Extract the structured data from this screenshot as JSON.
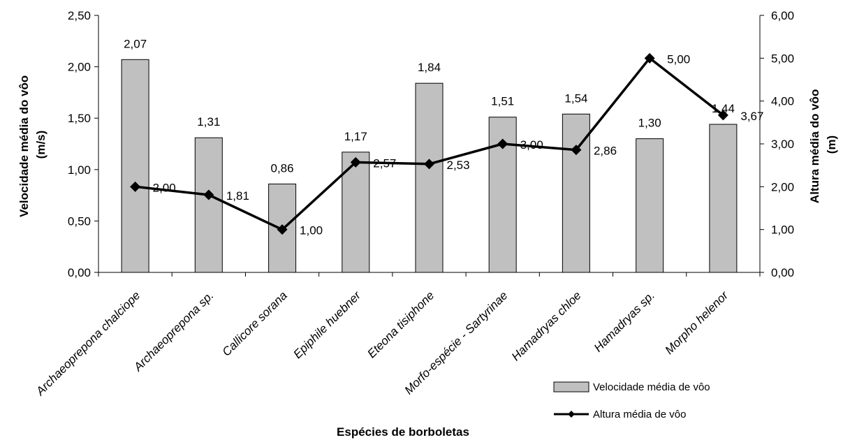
{
  "chart_data": {
    "type": "bar",
    "title": "",
    "xlabel": "Espécies de borboletas",
    "ylabel": "Velocidade média do vôo (m/s)",
    "ylabel_lines": [
      "Velocidade média do vôo",
      "(m/s)"
    ],
    "y2label": "Altura média do vôo (m)",
    "y2label_lines": [
      "Altura média do vôo",
      "(m)"
    ],
    "ylim": [
      0,
      2.5
    ],
    "y2lim": [
      0,
      6
    ],
    "yticks": [
      "0,00",
      "0,50",
      "1,00",
      "1,50",
      "2,00",
      "2,50"
    ],
    "y2ticks": [
      "0,00",
      "1,00",
      "2,00",
      "3,00",
      "4,00",
      "5,00",
      "6,00"
    ],
    "grid": false,
    "legend_position": "bottom-right",
    "categories": [
      "Archaeoprepona chalciope",
      "Archaeoprepona sp.",
      "Callicore sorana",
      "Epiphile huebner",
      "Eteona tisiphone",
      "Morfo-espécie - Sartyrinae",
      "Hamadryas chloe",
      "Hamadryas sp.",
      "Morpho helenor"
    ],
    "series": [
      {
        "name": "Velocidade média de vôo",
        "type": "bar",
        "axis": "left",
        "color": "#c0c0c0",
        "values": [
          2.07,
          1.31,
          0.86,
          1.17,
          1.84,
          1.51,
          1.54,
          1.3,
          1.44
        ],
        "labels": [
          "2,07",
          "1,31",
          "0,86",
          "1,17",
          "1,84",
          "1,51",
          "1,54",
          "1,30",
          "1,44"
        ]
      },
      {
        "name": "Altura média de vôo",
        "type": "line",
        "axis": "right",
        "marker": "diamond",
        "color": "#000000",
        "values": [
          2.0,
          1.81,
          1.0,
          2.57,
          2.53,
          3.0,
          2.86,
          5.0,
          3.67
        ],
        "labels": [
          "2,00",
          "1,81",
          "1,00",
          "2,57",
          "2,53",
          "3,00",
          "2,86",
          "5,00",
          "3,67"
        ]
      }
    ]
  }
}
